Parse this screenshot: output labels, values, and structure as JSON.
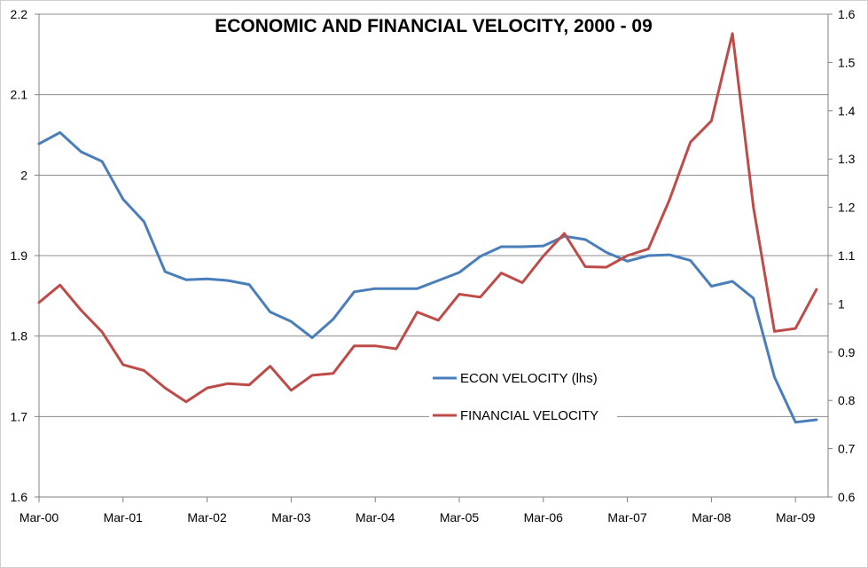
{
  "chart_data": {
    "type": "line",
    "title": "ECONOMIC AND FINANCIAL VELOCITY, 2000 - 09",
    "x_tick_labels": [
      "Mar-00",
      "Mar-01",
      "Mar-02",
      "Mar-03",
      "Mar-04",
      "Mar-05",
      "Mar-06",
      "Mar-07",
      "Mar-08",
      "Mar-09"
    ],
    "y_left": {
      "range": [
        1.6,
        2.2
      ],
      "ticks": [
        "1.6",
        "1.7",
        "1.8",
        "1.9",
        "2",
        "2.1",
        "2.2"
      ],
      "grid": true
    },
    "y_right": {
      "range": [
        0.6,
        1.6
      ],
      "ticks": [
        "0.6",
        "0.7",
        "0.8",
        "0.9",
        "1",
        "1.1",
        "1.2",
        "1.3",
        "1.4",
        "1.5",
        "1.6"
      ]
    },
    "x_quarters": [
      "2000Q1",
      "2000Q2",
      "2000Q3",
      "2000Q4",
      "2001Q1",
      "2001Q2",
      "2001Q3",
      "2001Q4",
      "2002Q1",
      "2002Q2",
      "2002Q3",
      "2002Q4",
      "2003Q1",
      "2003Q2",
      "2003Q3",
      "2003Q4",
      "2004Q1",
      "2004Q2",
      "2004Q3",
      "2004Q4",
      "2005Q1",
      "2005Q2",
      "2005Q3",
      "2005Q4",
      "2006Q1",
      "2006Q2",
      "2006Q3",
      "2006Q4",
      "2007Q1",
      "2007Q2",
      "2007Q3",
      "2007Q4",
      "2008Q1",
      "2008Q2",
      "2008Q3",
      "2008Q4",
      "2009Q1",
      "2009Q2"
    ],
    "legend_position": "center-right",
    "series": [
      {
        "name": "ECON VELOCITY (lhs)",
        "axis": "left",
        "color": "#4a7ebb",
        "values": [
          2.039,
          2.053,
          2.029,
          2.017,
          1.97,
          1.942,
          1.88,
          1.87,
          1.871,
          1.869,
          1.864,
          1.83,
          1.818,
          1.798,
          1.821,
          1.855,
          1.859,
          1.859,
          1.859,
          1.869,
          1.879,
          1.899,
          1.911,
          1.911,
          1.912,
          1.924,
          1.92,
          1.904,
          1.893,
          1.9,
          1.901,
          1.894,
          1.862,
          1.868,
          1.847,
          1.749,
          1.693,
          1.696
        ]
      },
      {
        "name": "FINANCIAL VELOCITY",
        "axis": "right",
        "color": "#be4b48",
        "values": [
          1.003,
          1.039,
          0.987,
          0.942,
          0.874,
          0.862,
          0.826,
          0.797,
          0.826,
          0.835,
          0.832,
          0.871,
          0.821,
          0.852,
          0.856,
          0.913,
          0.913,
          0.907,
          0.983,
          0.966,
          1.02,
          1.014,
          1.064,
          1.044,
          1.099,
          1.146,
          1.077,
          1.076,
          1.1,
          1.114,
          1.215,
          1.335,
          1.379,
          1.56,
          1.2,
          0.943,
          0.949,
          1.03
        ]
      }
    ]
  }
}
